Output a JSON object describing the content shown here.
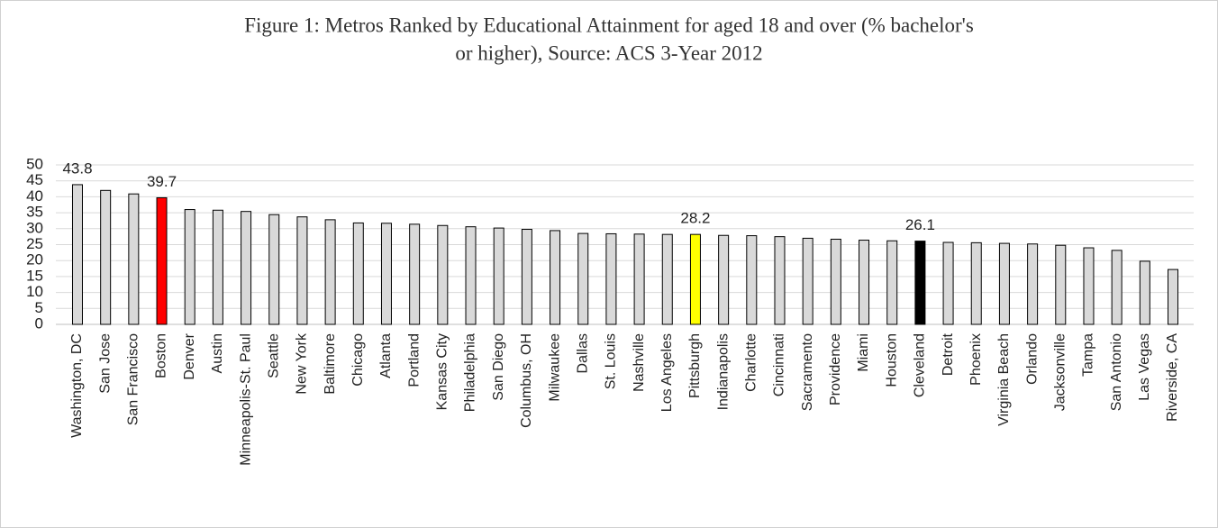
{
  "chart_data": {
    "type": "bar",
    "title": "Figure 1: Metros Ranked by Educational Attainment for aged 18 and over (% bachelor's",
    "subtitle": "or higher), Source: ACS 3-Year 2012",
    "categories": [
      "Washington, DC",
      "San Jose",
      "San Francisco",
      "Boston",
      "Denver",
      "Austin",
      "Minneapolis-St. Paul",
      "Seattle",
      "New York",
      "Baltimore",
      "Chicago",
      "Atlanta",
      "Portland",
      "Kansas City",
      "Philadelphia",
      "San Diego",
      "Columbus, OH",
      "Milwaukee",
      "Dallas",
      "St. Louis",
      "Nashville",
      "Los Angeles",
      "Pittsburgh",
      "Indianapolis",
      "Charlotte",
      "Cincinnati",
      "Sacramento",
      "Providence",
      "Miami",
      "Houston",
      "Cleveland",
      "Detroit",
      "Phoenix",
      "Virginia Beach",
      "Orlando",
      "Jacksonville",
      "Tampa",
      "San Antonio",
      "Las Vegas",
      "Riverside, CA"
    ],
    "values": [
      43.8,
      42.0,
      40.9,
      39.7,
      36.0,
      35.8,
      35.4,
      34.4,
      33.7,
      32.8,
      31.8,
      31.7,
      31.4,
      31.0,
      30.6,
      30.2,
      29.8,
      29.4,
      28.5,
      28.4,
      28.3,
      28.2,
      28.2,
      27.9,
      27.8,
      27.5,
      27.0,
      26.7,
      26.4,
      26.2,
      26.1,
      25.7,
      25.6,
      25.4,
      25.2,
      24.8,
      24.0,
      23.2,
      19.8,
      17.2
    ],
    "value_labels": [
      "43.8",
      null,
      null,
      "39.7",
      null,
      null,
      null,
      null,
      null,
      null,
      null,
      null,
      null,
      null,
      null,
      null,
      null,
      null,
      null,
      null,
      null,
      null,
      "28.2",
      null,
      null,
      null,
      null,
      null,
      null,
      null,
      "26.1",
      null,
      null,
      null,
      null,
      null,
      null,
      null,
      null,
      null
    ],
    "colors": [
      "#d9d9d9",
      "#d9d9d9",
      "#d9d9d9",
      "#ff0000",
      "#d9d9d9",
      "#d9d9d9",
      "#d9d9d9",
      "#d9d9d9",
      "#d9d9d9",
      "#d9d9d9",
      "#d9d9d9",
      "#d9d9d9",
      "#d9d9d9",
      "#d9d9d9",
      "#d9d9d9",
      "#d9d9d9",
      "#d9d9d9",
      "#d9d9d9",
      "#d9d9d9",
      "#d9d9d9",
      "#d9d9d9",
      "#d9d9d9",
      "#ffff00",
      "#d9d9d9",
      "#d9d9d9",
      "#d9d9d9",
      "#d9d9d9",
      "#d9d9d9",
      "#d9d9d9",
      "#d9d9d9",
      "#000000",
      "#d9d9d9",
      "#d9d9d9",
      "#d9d9d9",
      "#d9d9d9",
      "#d9d9d9",
      "#d9d9d9",
      "#d9d9d9",
      "#d9d9d9",
      "#d9d9d9"
    ],
    "ylim": [
      0,
      50
    ],
    "yticks": [
      0,
      5,
      10,
      15,
      20,
      25,
      30,
      35,
      40,
      45,
      50
    ],
    "grid": true
  }
}
